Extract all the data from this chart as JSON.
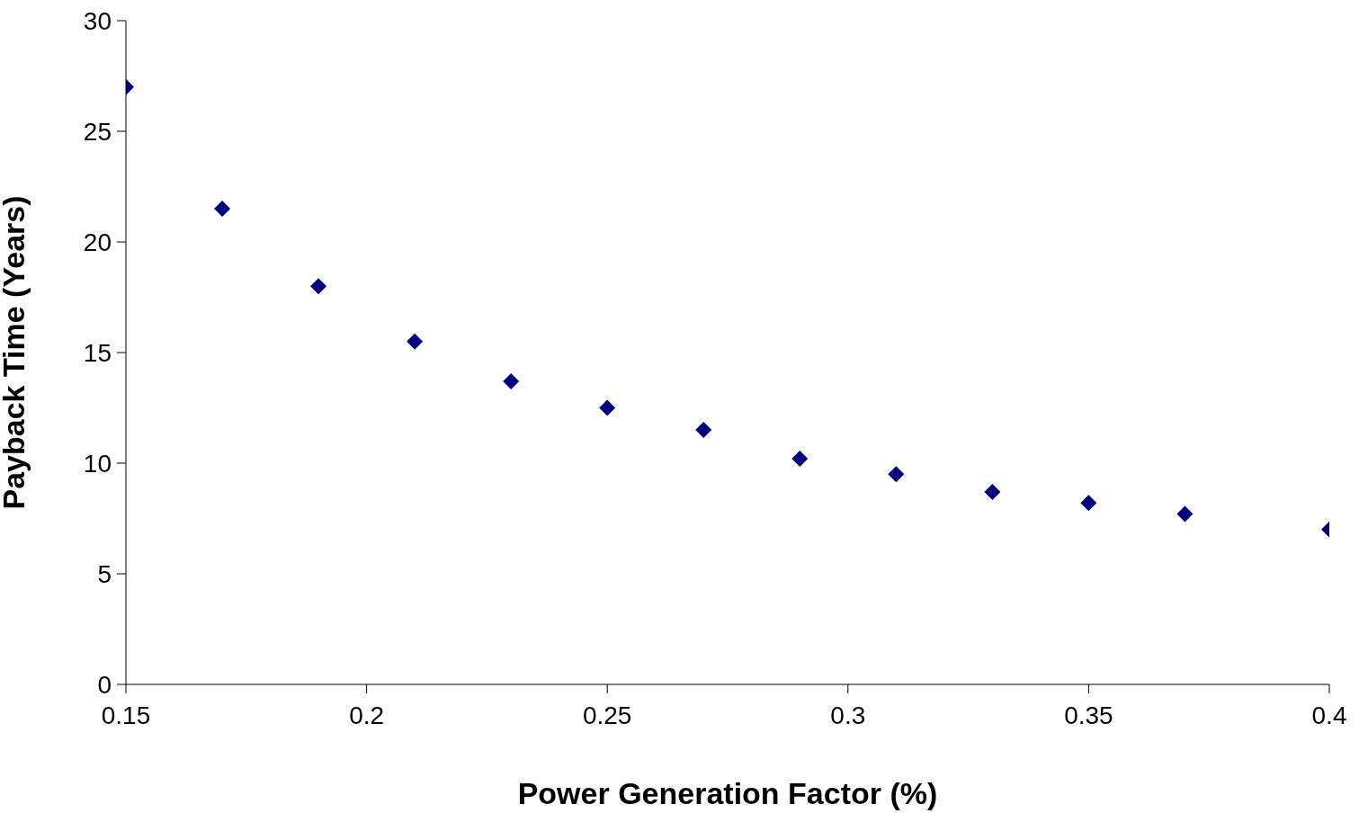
{
  "chart_data": {
    "type": "scatter",
    "xlabel": "Power Generation Factor (%)",
    "ylabel": "Payback Time (Years)",
    "x": [
      0.15,
      0.17,
      0.19,
      0.21,
      0.23,
      0.25,
      0.27,
      0.29,
      0.31,
      0.33,
      0.35,
      0.37,
      0.4
    ],
    "series": [
      {
        "color": "#000080",
        "values": [
          27,
          21.5,
          18,
          15.5,
          13.7,
          12.5,
          11.5,
          10.2,
          9.5,
          8.7,
          8.2,
          7.7,
          7.0
        ]
      }
    ],
    "xlim": [
      0.15,
      0.4
    ],
    "xticks": [
      0.15,
      0.2,
      0.25,
      0.3,
      0.35,
      0.4
    ],
    "ylim": [
      0,
      30
    ],
    "yticks": [
      0,
      5,
      10,
      15,
      20,
      25,
      30
    ],
    "grid": false,
    "legend": false,
    "marker": "diamond"
  }
}
